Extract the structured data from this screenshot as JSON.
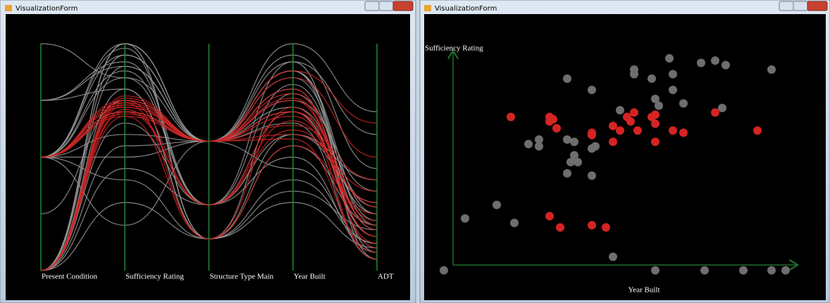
{
  "windows": [
    {
      "title": "VisualizationForm",
      "chart": {
        "type": "parallel",
        "axes": [
          "Present Condition",
          "Sufficiency Rating",
          "Structure Type Main",
          "Year Built",
          "ADT"
        ],
        "ylim": [
          0,
          100
        ],
        "series": [
          {
            "color": "#9a9a9a",
            "lines": [
              [
                50,
                95,
                57,
                88,
                20
              ],
              [
                0,
                90,
                57,
                80,
                10
              ],
              [
                50,
                85,
                29,
                70,
                15
              ],
              [
                0,
                100,
                57,
                92,
                5
              ],
              [
                75,
                80,
                14,
                60,
                30
              ],
              [
                50,
                60,
                57,
                88,
                25
              ],
              [
                0,
                45,
                29,
                50,
                8
              ],
              [
                50,
                98,
                14,
                40,
                12
              ],
              [
                100,
                85,
                57,
                75,
                35
              ],
              [
                0,
                30,
                14,
                55,
                20
              ],
              [
                50,
                70,
                57,
                95,
                45
              ],
              [
                75,
                92,
                29,
                82,
                18
              ],
              [
                0,
                55,
                57,
                65,
                5
              ],
              [
                50,
                40,
                14,
                30,
                10
              ],
              [
                0,
                95,
                57,
                85,
                22
              ],
              [
                50,
                88,
                29,
                92,
                60
              ],
              [
                25,
                75,
                57,
                70,
                15
              ],
              [
                0,
                100,
                14,
                78,
                28
              ],
              [
                50,
                20,
                57,
                45,
                12
              ],
              [
                75,
                90,
                57,
                88,
                8
              ],
              [
                0,
                65,
                29,
                60,
                40
              ],
              [
                50,
                100,
                57,
                100,
                70
              ],
              [
                0,
                80,
                14,
                35,
                18
              ],
              [
                50,
                50,
                57,
                72,
                25
              ]
            ]
          },
          {
            "color": "#d42424",
            "lines": [
              [
                50,
                72,
                57,
                68,
                20
              ],
              [
                0,
                74,
                57,
                75,
                15
              ],
              [
                50,
                70,
                29,
                62,
                30
              ],
              [
                0,
                76,
                57,
                80,
                10
              ],
              [
                50,
                68,
                14,
                55,
                25
              ],
              [
                0,
                73,
                57,
                70,
                5
              ],
              [
                50,
                75,
                57,
                85,
                50
              ],
              [
                0,
                71,
                29,
                66,
                22
              ],
              [
                50,
                69,
                57,
                60,
                35
              ],
              [
                0,
                77,
                57,
                78,
                18
              ],
              [
                50,
                74,
                14,
                72,
                12
              ],
              [
                0,
                70,
                57,
                58,
                8
              ],
              [
                50,
                72,
                57,
                88,
                65
              ],
              [
                0,
                75,
                29,
                70,
                28
              ],
              [
                50,
                73,
                57,
                64,
                40
              ],
              [
                0,
                68,
                57,
                76,
                15
              ]
            ]
          }
        ]
      }
    },
    {
      "title": "VisualizationForm",
      "chart": {
        "type": "scatter",
        "x_label": "Year Built",
        "y_label": "Sufficiency Rating",
        "xlim": [
          0,
          100
        ],
        "ylim": [
          0,
          100
        ],
        "series": [
          {
            "color": "#6e6e6e",
            "x": [
              2,
              8,
              17,
              22,
              26,
              29,
              29,
              37,
              37,
              39,
              38,
              39,
              40,
              44,
              44,
              45,
              44,
              37,
              50,
              52,
              56,
              56,
              61,
              62,
              63,
              66,
              67,
              67,
              70,
              75,
              79,
              82,
              81,
              76,
              87,
              95,
              95,
              99,
              62
            ],
            "y": [
              2,
              25,
              31,
              23,
              58,
              60,
              57,
              87,
              60,
              59,
              50,
              53,
              50,
              82,
              56,
              57,
              44,
              45,
              8,
              73,
              91,
              89,
              87,
              2,
              75,
              96,
              89,
              82,
              76,
              94,
              95,
              93,
              74,
              2,
              2,
              91,
              2,
              2,
              78
            ]
          },
          {
            "color": "#d42424",
            "x": [
              21,
              32,
              33,
              32,
              34,
              44,
              44,
              50,
              50,
              52,
              54,
              55,
              56,
              57,
              61,
              62,
              62,
              67,
              70,
              62,
              79,
              91,
              32,
              35,
              44,
              48
            ],
            "y": [
              70,
              70,
              69,
              68,
              65,
              63,
              62,
              66,
              59,
              64,
              70,
              68,
              72,
              64,
              70,
              71,
              67,
              64,
              63,
              59,
              72,
              64,
              26,
              21,
              22,
              21
            ]
          }
        ]
      }
    }
  ]
}
